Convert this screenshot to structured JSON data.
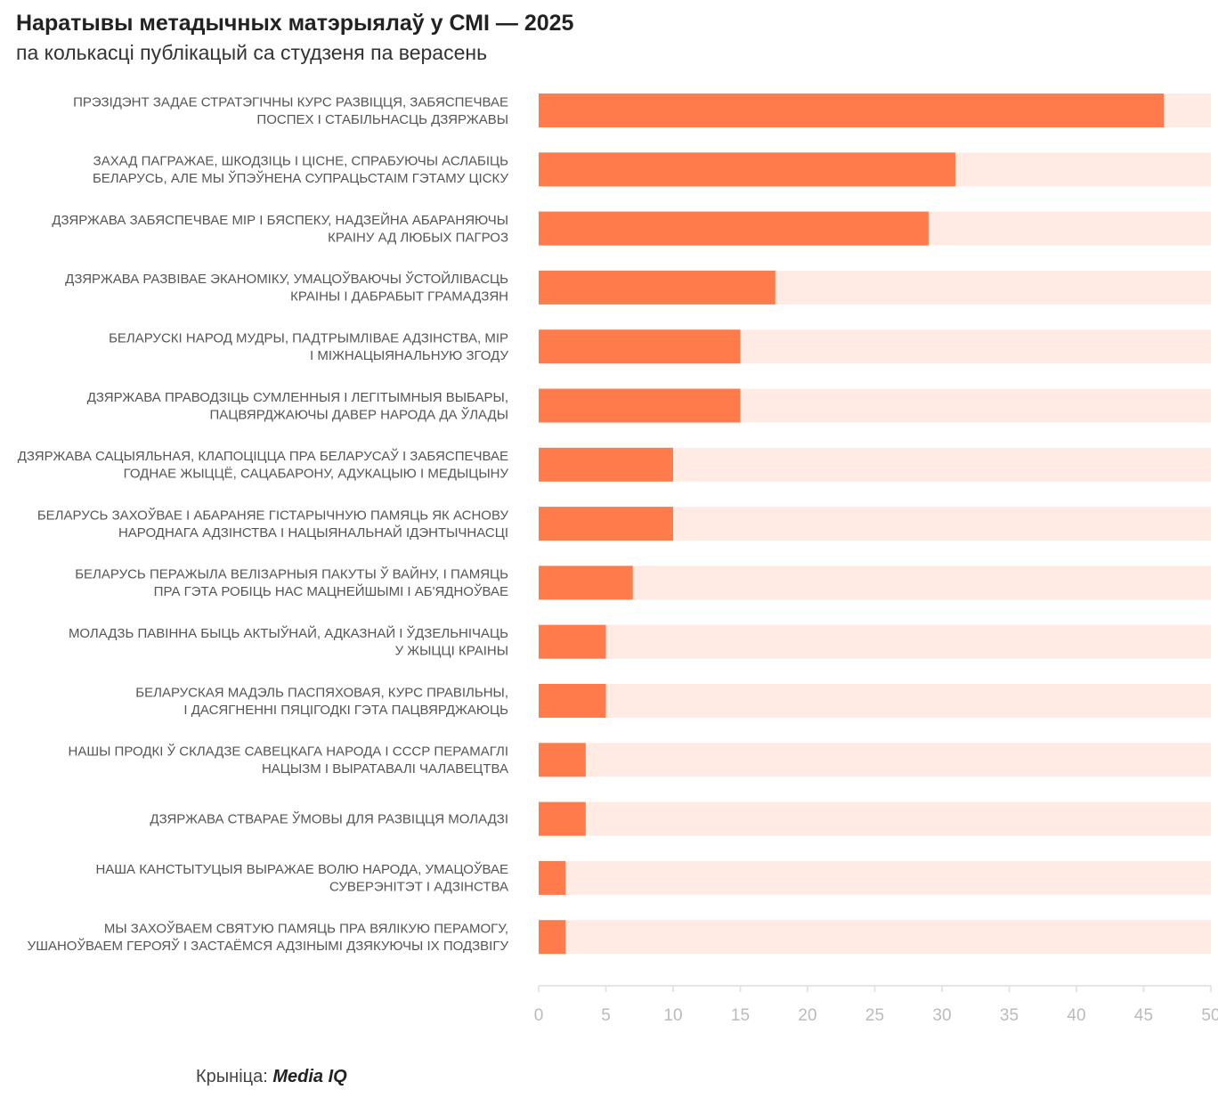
{
  "header": {
    "title": "Наратывы метадычных матэрыялаў у СМІ — 2025",
    "subtitle": "па колькасці публікацый са студзеня па верасень"
  },
  "footer": {
    "source_label": "Крыніца:",
    "source_name": "Media IQ"
  },
  "colors": {
    "bar": "#ff7b4b",
    "track": "#ffebe4",
    "axis": "#e5e5e5",
    "tick_text": "#bbbbbb",
    "label_text": "#555555"
  },
  "chart_data": {
    "type": "bar",
    "orientation": "horizontal",
    "title": "Наратывы метадычных матэрыялаў у СМІ — 2025",
    "subtitle": "па колькасці публікацый са студзеня па верасень",
    "xlabel": "",
    "ylabel": "",
    "xlim": [
      0,
      50
    ],
    "x_ticks": [
      0,
      5,
      10,
      15,
      20,
      25,
      30,
      35,
      40,
      45,
      50
    ],
    "grid": false,
    "legend": "none",
    "categories": [
      [
        "ПРЭЗІДЭНТ ЗАДАЕ СТРАТЭГІЧНЫ КУРС РАЗВІЦЦЯ, ЗАБЯСПЕЧВАЕ",
        "ПОСПЕХ І СТАБІЛЬНАСЦЬ ДЗЯРЖАВЫ"
      ],
      [
        "ЗАХАД ПАГРАЖАЕ, ШКОДЗІЦЬ І ЦІСНЕ, СПРАБУЮЧЫ АСЛАБІЦЬ",
        "БЕЛАРУСЬ, АЛЕ МЫ ЎПЭЎНЕНА СУПРАЦЬСТАІМ ГЭТАМУ ЦІСКУ"
      ],
      [
        "ДЗЯРЖАВА ЗАБЯСПЕЧВАЕ МІР І БЯСПЕКУ, НАДЗЕЙНА АБАРАНЯЮЧЫ",
        "КРАІНУ АД ЛЮБЫХ ПАГРОЗ"
      ],
      [
        "ДЗЯРЖАВА РАЗВІВАЕ ЭКАНОМІКУ, УМАЦОЎВАЮЧЫ ЎСТОЙЛІВАСЦЬ",
        "КРАІНЫ І ДАБРАБЫТ ГРАМАДЗЯН"
      ],
      [
        "БЕЛАРУСКІ НАРОД МУДРЫ, ПАДТРЫМЛІВАЕ АДЗІНСТВА, МІР",
        "І МІЖНАЦЫЯНАЛЬНУЮ ЗГОДУ"
      ],
      [
        "ДЗЯРЖАВА ПРАВОДЗІЦЬ СУМЛЕННЫЯ І ЛЕГІТЫМНЫЯ ВЫБАРЫ,",
        "ПАЦВЯРДЖАЮЧЫ ДАВЕР НАРОДА ДА ЎЛАДЫ"
      ],
      [
        "ДЗЯРЖАВА САЦЫЯЛЬНАЯ, КЛАПОЦІЦЦА ПРА БЕЛАРУСАЎ І ЗАБЯСПЕЧВАЕ",
        "ГОДНАЕ ЖЫЦЦЁ, САЦАБАРОНУ, АДУКАЦЫЮ І МЕДЫЦЫНУ"
      ],
      [
        "БЕЛАРУСЬ ЗАХОЎВАЕ І АБАРАНЯЕ ГІСТАРЫЧНУЮ ПАМЯЦЬ ЯК АСНОВУ",
        "НАРОДНАГА АДЗІНСТВА І НАЦЫЯНАЛЬНАЙ ІДЭНТЫЧНАСЦІ"
      ],
      [
        "БЕЛАРУСЬ ПЕРАЖЫЛА ВЕЛІЗАРНЫЯ ПАКУТЫ Ў ВАЙНУ, І ПАМЯЦЬ",
        "ПРА ГЭТА РОБІЦЬ НАС МАЦНЕЙШЫМІ І АБ'ЯДНОЎВАЕ"
      ],
      [
        "МОЛАДЗЬ ПАВІННА БЫЦЬ АКТЫЎНАЙ, АДКАЗНАЙ І ЎДЗЕЛЬНІЧАЦЬ",
        "У ЖЫЦЦІ КРАІНЫ"
      ],
      [
        "БЕЛАРУСКАЯ МАДЭЛЬ ПАСПЯХОВАЯ, КУРС ПРАВІЛЬНЫ,",
        "І ДАСЯГНЕННІ ПЯЦІГОДКІ ГЭТА ПАЦВЯРДЖАЮЦЬ"
      ],
      [
        "НАШЫ ПРОДКІ Ў СКЛАДЗЕ САВЕЦКАГА НАРОДА І СССР ПЕРАМАГЛІ",
        "НАЦЫЗМ І ВЫРАТАВАЛІ ЧАЛАВЕЦТВА"
      ],
      [
        "ДЗЯРЖАВА СТВАРАЕ ЎМОВЫ ДЛЯ РАЗВІЦЦЯ МОЛАДЗІ"
      ],
      [
        "НАША КАНСТЫТУЦЫЯ ВЫРАЖАЕ ВОЛЮ НАРОДА, УМАЦОЎВАЕ",
        "СУВЕРЭНІТЭТ І АДЗІНСТВА"
      ],
      [
        "МЫ ЗАХОЎВАЕМ СВЯТУЮ ПАМЯЦЬ ПРА ВЯЛІКУЮ ПЕРАМОГУ,",
        "УШАНОЎВАЕМ ГЕРОЯЎ І ЗАСТАЁМСЯ АДЗІНЫМІ ДЗЯКУЮЧЫ ІХ ПОДЗВІГУ"
      ]
    ],
    "values": [
      46.5,
      31,
      29,
      17.6,
      15,
      15,
      10,
      10,
      7,
      5,
      5,
      3.5,
      3.5,
      2,
      2
    ]
  }
}
